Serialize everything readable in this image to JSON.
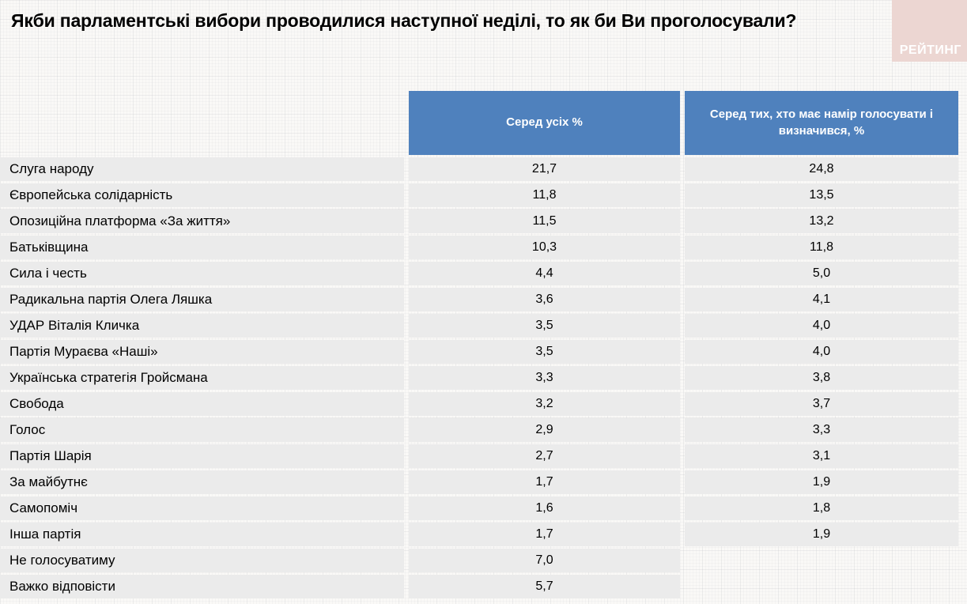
{
  "title": "Якби парламентські вибори проводилися наступної неділі, то як би Ви проголосували?",
  "logo": {
    "text": "РЕЙТИНГ"
  },
  "colors": {
    "header_blue": "#4f81bd",
    "row_gray": "#ebebeb",
    "logo_pink": "#ecd6d2",
    "page_bg": "#faf9f7"
  },
  "table": {
    "party_column_header": "",
    "col_all_header": "Серед усіх %",
    "col_decided_header": "Серед тих, хто має намір голосувати і визначився, %",
    "rows": [
      {
        "party": "Слуга народу",
        "all": "21,7",
        "decided": "24,8"
      },
      {
        "party": "Європейська солідарність",
        "all": "11,8",
        "decided": "13,5"
      },
      {
        "party": "Опозиційна платформа «За життя»",
        "all": "11,5",
        "decided": "13,2"
      },
      {
        "party": "Батьківщина",
        "all": "10,3",
        "decided": "11,8"
      },
      {
        "party": "Сила і честь",
        "all": "4,4",
        "decided": "5,0"
      },
      {
        "party": "Радикальна партія Олега Ляшка",
        "all": "3,6",
        "decided": "4,1"
      },
      {
        "party": "УДАР Віталія Кличка",
        "all": "3,5",
        "decided": "4,0"
      },
      {
        "party": "Партія Мураєва «Наші»",
        "all": "3,5",
        "decided": "4,0"
      },
      {
        "party": "Українська стратегія Гройсмана",
        "all": "3,3",
        "decided": "3,8"
      },
      {
        "party": "Свобода",
        "all": "3,2",
        "decided": "3,7"
      },
      {
        "party": "Голос",
        "all": "2,9",
        "decided": "3,3"
      },
      {
        "party": "Партія Шарія",
        "all": "2,7",
        "decided": "3,1"
      },
      {
        "party": "За майбутнє",
        "all": "1,7",
        "decided": "1,9"
      },
      {
        "party": "Самопоміч",
        "all": "1,6",
        "decided": "1,8"
      },
      {
        "party": "Інша партія",
        "all": "1,7",
        "decided": "1,9"
      },
      {
        "party": "Не голосуватиму",
        "all": "7,0",
        "decided": ""
      },
      {
        "party": "Важко відповісти",
        "all": "5,7",
        "decided": ""
      }
    ]
  },
  "chart_data": {
    "type": "table",
    "title": "Якби парламентські вибори проводилися наступної неділі, то як би Ви проголосували?",
    "categories": [
      "Слуга народу",
      "Європейська солідарність",
      "Опозиційна платформа «За життя»",
      "Батьківщина",
      "Сила і честь",
      "Радикальна партія Олега Ляшка",
      "УДАР Віталія Кличка",
      "Партія Мураєва «Наші»",
      "Українська стратегія Гройсмана",
      "Свобода",
      "Голос",
      "Партія Шарія",
      "За майбутнє",
      "Самопоміч",
      "Інша партія",
      "Не голосуватиму",
      "Важко відповісти"
    ],
    "series": [
      {
        "name": "Серед усіх %",
        "values": [
          21.7,
          11.8,
          11.5,
          10.3,
          4.4,
          3.6,
          3.5,
          3.5,
          3.3,
          3.2,
          2.9,
          2.7,
          1.7,
          1.6,
          1.7,
          7.0,
          5.7
        ]
      },
      {
        "name": "Серед тих, хто має намір голосувати і визначився, %",
        "values": [
          24.8,
          13.5,
          13.2,
          11.8,
          5.0,
          4.1,
          4.0,
          4.0,
          3.8,
          3.7,
          3.3,
          3.1,
          1.9,
          1.8,
          1.9,
          null,
          null
        ]
      }
    ]
  }
}
